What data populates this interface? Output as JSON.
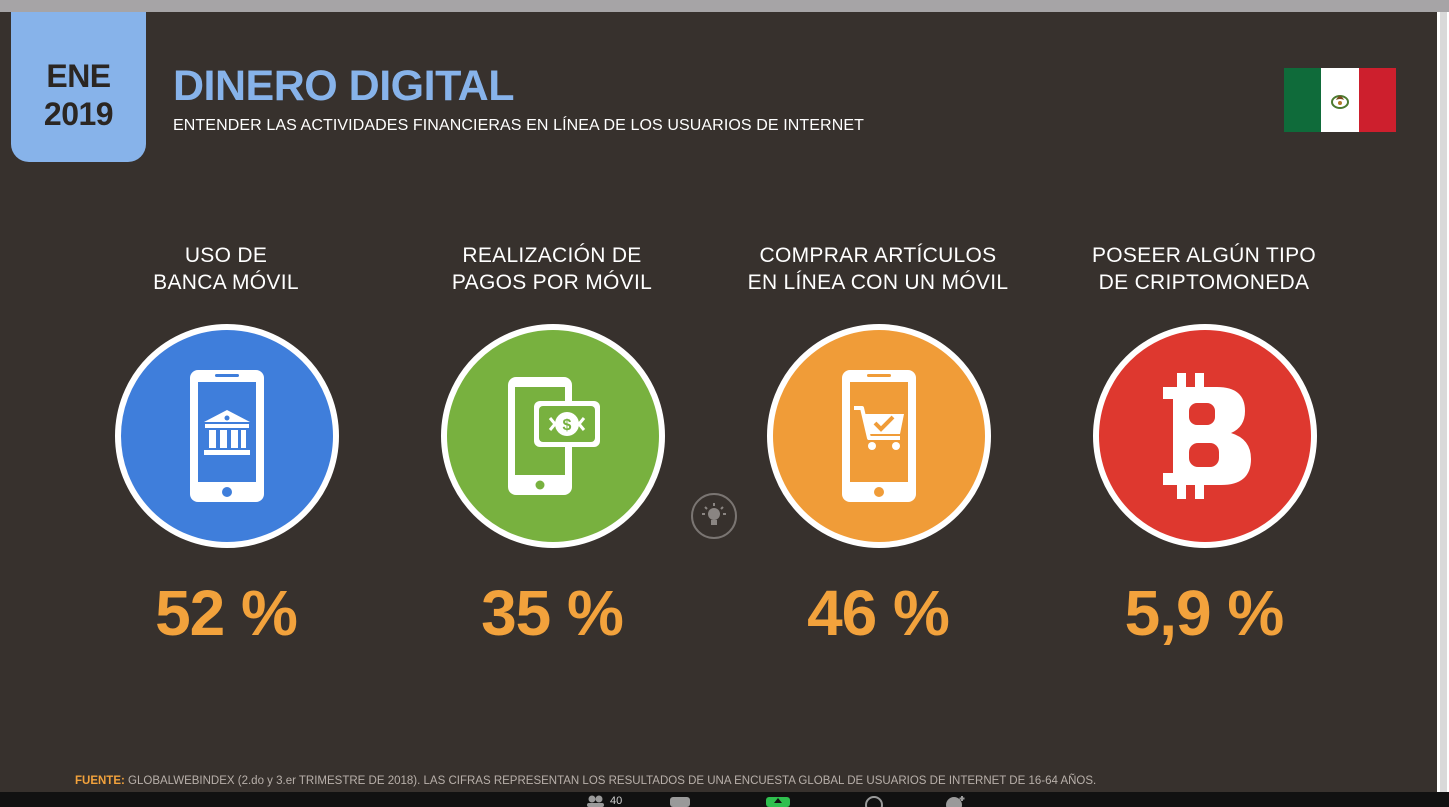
{
  "header": {
    "date_line1": "ENE",
    "date_line2": "2019",
    "title": "DINERO DIGITAL",
    "subtitle": "ENTENDER LAS ACTIVIDADES FINANCIERAS EN LÍNEA DE LOS USUARIOS DE INTERNET",
    "flag_icon": "mexico-flag-icon"
  },
  "stats": [
    {
      "label_line1": "USO DE",
      "label_line2": "BANCA MÓVIL",
      "value": "52 %",
      "color": "#3f7edb",
      "icon": "mobile-bank-icon"
    },
    {
      "label_line1": "REALIZACIÓN DE",
      "label_line2": "PAGOS POR MÓVIL",
      "value": "35 %",
      "color": "#78b13f",
      "icon": "mobile-payment-icon"
    },
    {
      "label_line1": "COMPRAR ARTÍCULOS",
      "label_line2": "EN LÍNEA CON UN MÓVIL",
      "value": "46 %",
      "color": "#f09c38",
      "icon": "mobile-cart-icon"
    },
    {
      "label_line1": "POSEER ALGÚN TIPO",
      "label_line2": "DE CRIPTOMONEDA",
      "value": "5,9 %",
      "color": "#de382f",
      "icon": "bitcoin-icon"
    }
  ],
  "footer": {
    "source_label": "FUENTE:",
    "source_text": "GLOBALWEBINDEX (2.do y 3.er TRIMESTRE DE 2018). LAS CIFRAS REPRESENTAN LOS RESULTADOS DE UNA ENCUESTA GLOBAL DE USUARIOS DE INTERNET DE 16-64 AÑOS."
  },
  "taskbar": {
    "participants_count": "40"
  },
  "colors": {
    "accent_blue": "#87b3ea",
    "stat_orange": "#f2a23c",
    "slide_bg": "#37312d"
  }
}
